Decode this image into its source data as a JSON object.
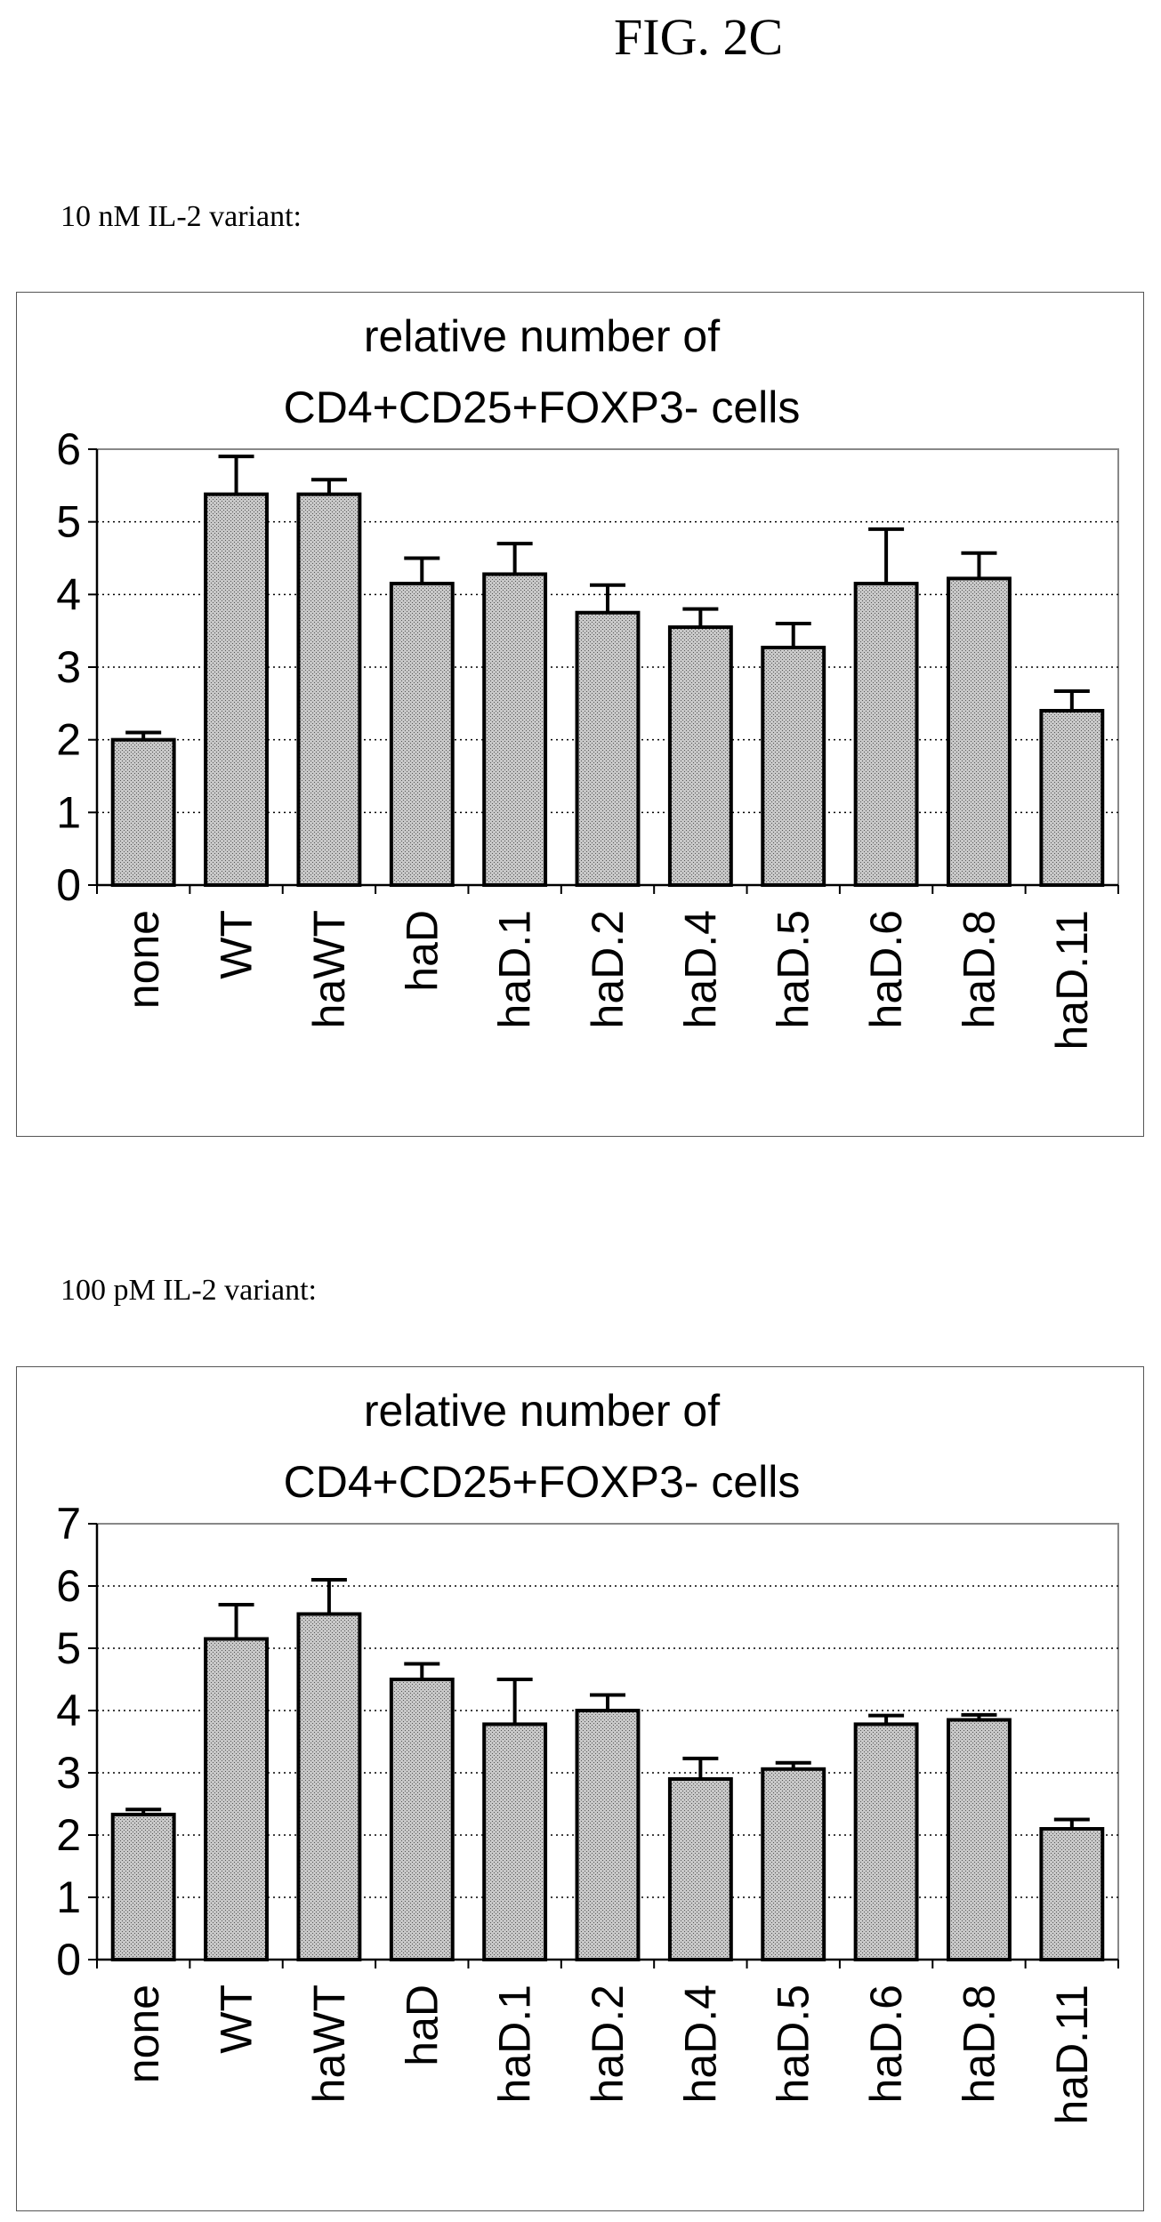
{
  "figure": {
    "title": "FIG. 2C",
    "panels": [
      {
        "label": "10 nM IL-2 variant:"
      },
      {
        "label": "100 pM IL-2 variant:"
      }
    ]
  },
  "chart_data": [
    {
      "type": "bar",
      "title_lines": [
        "relative number of",
        "CD4+CD25+FOXP3- cells"
      ],
      "categories": [
        "none",
        "WT",
        "haWT",
        "haD",
        "haD.1",
        "haD.2",
        "haD.4",
        "haD.5",
        "haD.6",
        "haD.8",
        "haD.11"
      ],
      "values": [
        2.0,
        5.38,
        5.38,
        4.15,
        4.28,
        3.75,
        3.55,
        3.27,
        4.15,
        4.22,
        2.4
      ],
      "errors": [
        0.1,
        0.52,
        0.2,
        0.35,
        0.42,
        0.38,
        0.25,
        0.33,
        0.75,
        0.35,
        0.27
      ],
      "ylim": [
        0,
        6
      ],
      "yticks": [
        0,
        1,
        2,
        3,
        4,
        5,
        6
      ],
      "grid": true,
      "bar_fill": "#c8c8c8",
      "xlabel": "",
      "ylabel": ""
    },
    {
      "type": "bar",
      "title_lines": [
        "relative number of",
        "CD4+CD25+FOXP3- cells"
      ],
      "categories": [
        "none",
        "WT",
        "haWT",
        "haD",
        "haD.1",
        "haD.2",
        "haD.4",
        "haD.5",
        "haD.6",
        "haD.8",
        "haD.11"
      ],
      "values": [
        2.33,
        5.15,
        5.55,
        4.5,
        3.78,
        4.0,
        2.9,
        3.06,
        3.78,
        3.85,
        2.1
      ],
      "errors": [
        0.08,
        0.55,
        0.55,
        0.25,
        0.72,
        0.25,
        0.33,
        0.1,
        0.14,
        0.08,
        0.15
      ],
      "ylim": [
        0,
        7
      ],
      "yticks": [
        0,
        1,
        2,
        3,
        4,
        5,
        6,
        7
      ],
      "grid": true,
      "bar_fill": "#c8c8c8",
      "xlabel": "",
      "ylabel": ""
    }
  ]
}
